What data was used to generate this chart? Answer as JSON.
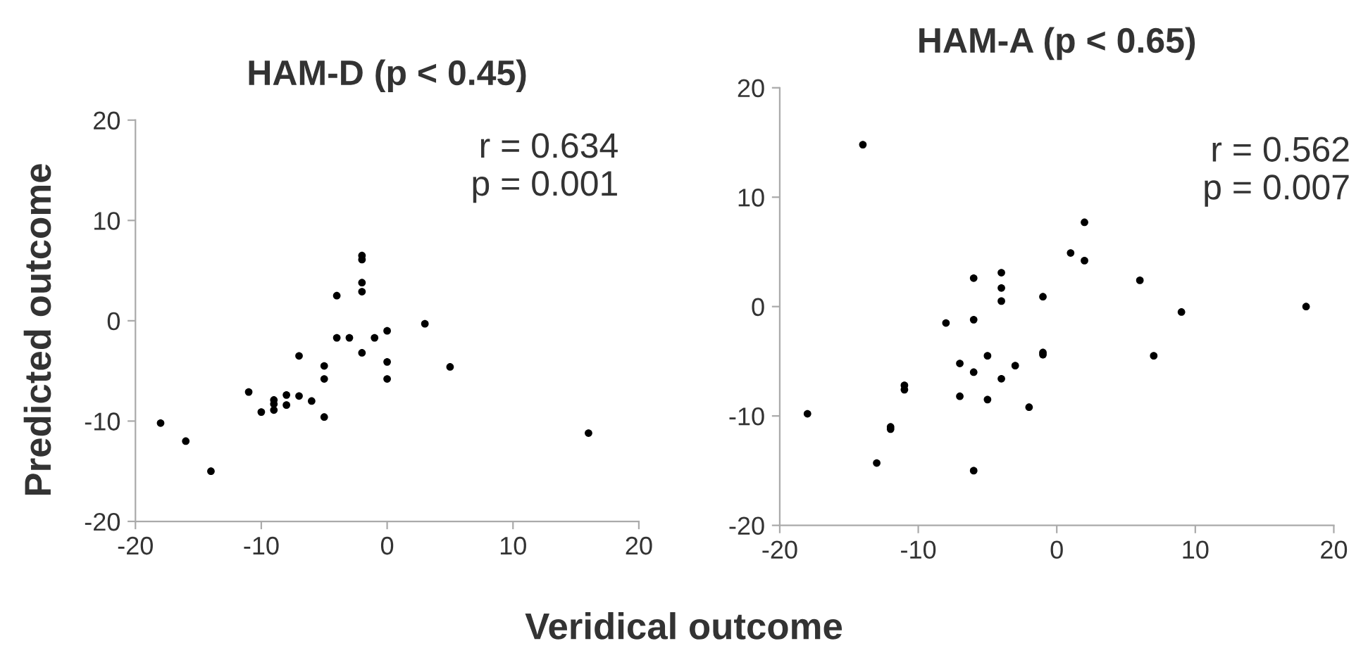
{
  "chart_data": [
    {
      "type": "scatter",
      "title": "HAM-D (p < 0.45)",
      "xlabel": "Veridical outcome",
      "ylabel": "Predicted outcome",
      "x": [
        -18,
        -16,
        -14,
        -11,
        -10,
        -9,
        -9,
        -9,
        -8,
        -8,
        -7,
        -7,
        -6,
        -5,
        -5,
        -5,
        -4,
        -4,
        -3,
        -2,
        -2,
        -2,
        -2,
        -2,
        -1,
        0,
        0,
        0,
        3,
        5,
        16
      ],
      "series": [
        {
          "color": "#000000",
          "values": [
            -10.2,
            -12.0,
            -15.0,
            -7.1,
            -9.1,
            -7.9,
            -8.3,
            -8.9,
            -7.4,
            -8.4,
            -3.5,
            -7.5,
            -8.0,
            -4.5,
            -5.8,
            -9.6,
            2.5,
            -1.7,
            -1.7,
            6.5,
            6.1,
            3.8,
            2.9,
            -3.2,
            -1.7,
            -1.0,
            -4.1,
            -5.8,
            -0.3,
            -4.6,
            -11.2
          ]
        }
      ],
      "xlim": [
        -20,
        20
      ],
      "ylim": [
        -20,
        20
      ],
      "xticks": [
        -20,
        -10,
        0,
        10,
        20
      ],
      "yticks": [
        -20,
        -10,
        0,
        10,
        20
      ],
      "annotations": [
        "r = 0.634",
        "p = 0.001"
      ],
      "marker": "circle",
      "grid": false
    },
    {
      "type": "scatter",
      "title": "HAM-A (p < 0.65)",
      "x": [
        -18,
        -14,
        -13,
        -12,
        -12,
        -11,
        -11,
        -8,
        -7,
        -7,
        -6,
        -6,
        -6,
        -6,
        -5,
        -5,
        -4,
        -4,
        -4,
        -4,
        -3,
        -2,
        -1,
        -1,
        -1,
        1,
        2,
        2,
        6,
        7,
        9,
        18
      ],
      "series": [
        {
          "color": "#000000",
          "values": [
            -9.8,
            14.8,
            -14.3,
            -11.0,
            -11.2,
            -7.2,
            -7.6,
            -1.5,
            -5.2,
            -8.2,
            2.6,
            -1.2,
            -6.0,
            -15.0,
            -4.5,
            -8.5,
            3.1,
            1.7,
            0.5,
            -6.6,
            -5.4,
            -9.2,
            0.9,
            -4.2,
            -4.4,
            4.9,
            7.7,
            4.2,
            2.4,
            -4.5,
            -0.5,
            0.0
          ]
        }
      ],
      "xlim": [
        -20,
        20
      ],
      "ylim": [
        -20,
        20
      ],
      "xticks": [
        -20,
        -10,
        0,
        10,
        20
      ],
      "yticks": [
        -20,
        -10,
        0,
        10,
        20
      ],
      "annotations": [
        "r = 0.562",
        "p = 0.007"
      ],
      "marker": "circle",
      "grid": false
    }
  ]
}
